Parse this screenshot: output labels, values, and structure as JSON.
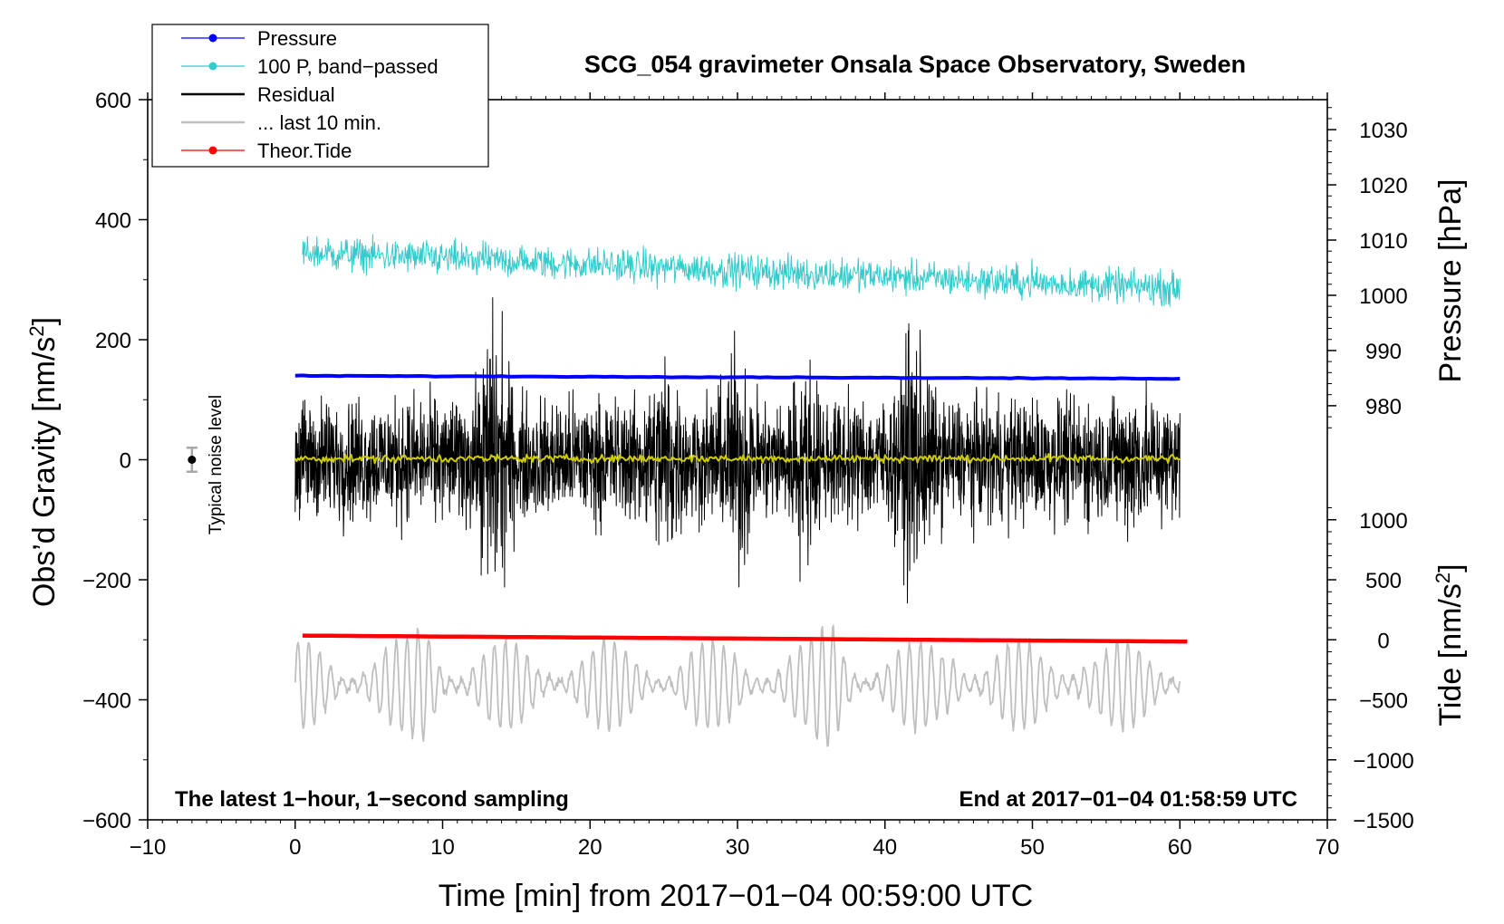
{
  "chart_data": {
    "type": "line",
    "title": "SCG_054 gravimeter Onsala Space Observatory, Sweden",
    "xlabel": "Time [min] from 2017−01−04 00:59:00 UTC",
    "ylabel_left_prefix": "Obs’d Gravity [nm/s",
    "ylabel_left_sup": "2",
    "ylabel_left_suffix": "]",
    "ylabel_right_pressure": "Pressure [hPa]",
    "ylabel_right_tide_prefix": "Tide [nm/s",
    "ylabel_right_tide_sup": "2",
    "ylabel_right_tide_suffix": "]",
    "xlim": [
      -10,
      70
    ],
    "ylim": [
      -600,
      600
    ],
    "x_ticks": [
      -10,
      0,
      10,
      20,
      30,
      40,
      50,
      60,
      70
    ],
    "x_tick_labels": [
      "−10",
      "0",
      "10",
      "20",
      "30",
      "40",
      "50",
      "60",
      "70"
    ],
    "y_ticks": [
      -600,
      -400,
      -200,
      0,
      200,
      400,
      600
    ],
    "y_tick_labels": [
      "−600",
      "−400",
      "−200",
      "0",
      "200",
      "400",
      "600"
    ],
    "pressure_axis": {
      "ticks": [
        980,
        990,
        1000,
        1010,
        1020,
        1030
      ],
      "tick_labels": [
        "980",
        "990",
        "1000",
        "1010",
        "1020",
        "1030"
      ],
      "gravity_at_980": 90,
      "gravity_per_hPa": 9.2
    },
    "tide_axis": {
      "ticks": [
        -1500,
        -1000,
        -500,
        0,
        500,
        1000
      ],
      "tick_labels": [
        "−1500",
        "−1000",
        "−500",
        "0",
        "500",
        "1000"
      ],
      "gravity_at_0": -300,
      "gravity_per_unit": 0.2
    },
    "legend": [
      {
        "label": "Pressure",
        "color": "#0000ff",
        "marker": true
      },
      {
        "label": "100 P, band−passed",
        "color": "#33cccc",
        "marker": true
      },
      {
        "label": "Residual",
        "color": "#000000",
        "marker": false
      },
      {
        "label": "... last 10 min.",
        "color": "#bfbfbf",
        "marker": false
      },
      {
        "label": "Theor.Tide",
        "color": "#ff0000",
        "marker": true
      }
    ],
    "series": [
      {
        "name": "Pressure",
        "color": "#0000ff",
        "unit": "gravity-scale",
        "x_range": [
          0,
          60
        ],
        "start": 140,
        "end": 135
      },
      {
        "name": "100 P, band-passed",
        "color": "#33cccc",
        "x_range": [
          0.5,
          60
        ],
        "start": 345,
        "end": 285,
        "amplitude": 30
      },
      {
        "name": "Residual",
        "color": "#000000",
        "x_range": [
          0,
          60
        ],
        "center": 0,
        "amplitude": 90,
        "bursts": [
          {
            "t": 13.5,
            "amp": 230
          },
          {
            "t": 25,
            "amp": 160
          },
          {
            "t": 30,
            "amp": 170
          },
          {
            "t": 34.5,
            "amp": 150
          },
          {
            "t": 42,
            "amp": 210
          },
          {
            "t": 57,
            "amp": 120
          }
        ]
      },
      {
        "name": "Residual mean",
        "color": "#cccc00",
        "x_range": [
          0,
          60
        ],
        "center": 2,
        "amplitude": 7
      },
      {
        "name": "... last 10 min.",
        "color": "#bfbfbf",
        "x_range": [
          0,
          60
        ],
        "center": -375,
        "amplitude": 75,
        "bursts": [
          {
            "t": 9,
            "amp": 145
          },
          {
            "t": 36.5,
            "amp": 130
          },
          {
            "t": 45,
            "amp": 150
          },
          {
            "t": 53,
            "amp": 130
          }
        ]
      },
      {
        "name": "Theor.Tide",
        "color": "#ff0000",
        "x_range": [
          0.5,
          60.5
        ],
        "start": -293,
        "end": -303
      }
    ],
    "noise_level": {
      "x": -7,
      "y": 0,
      "error": 20,
      "label": "Typical noise level"
    },
    "annotation_left": "The latest 1−hour, 1−second sampling",
    "annotation_right": "End at 2017−01−04 01:58:59 UTC"
  }
}
